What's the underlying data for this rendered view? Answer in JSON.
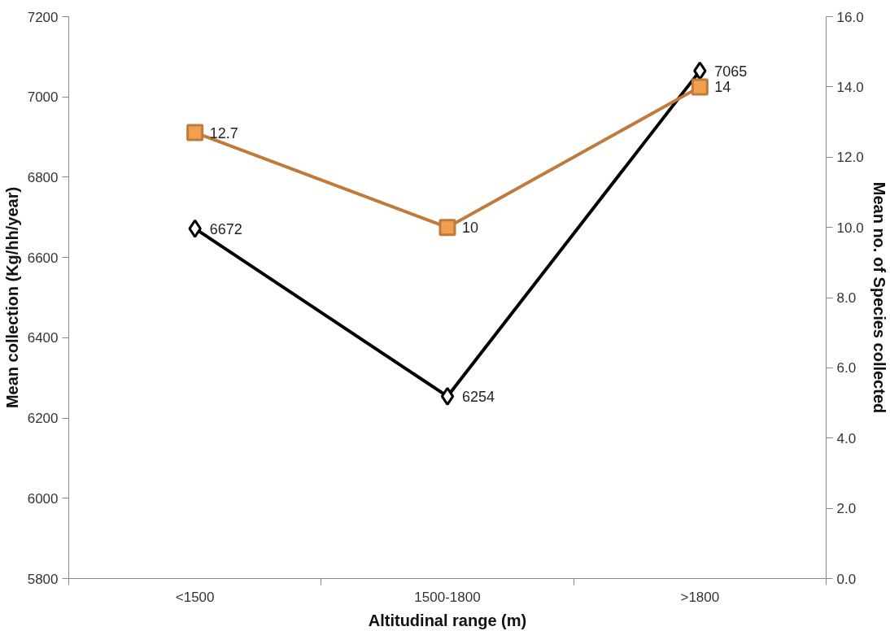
{
  "chart_data": {
    "type": "line",
    "xlabel": "Altitudinal range (m)",
    "ylabel": "Mean collection (Kg/hh/year)",
    "y2label": "Mean no. of Species collected",
    "categories": [
      "<1500",
      "1500-1800",
      ">1800"
    ],
    "series": [
      {
        "color": "#000000",
        "values": [
          6672,
          6254,
          7065
        ],
        "marker": "diamond"
      },
      {
        "color": "#c07a3c",
        "values": [
          12.7,
          10,
          14
        ],
        "marker": "square",
        "axis": "y2"
      }
    ],
    "ylim": [
      5800,
      7200
    ],
    "yticks": [
      5800,
      6000,
      6200,
      6400,
      6600,
      6800,
      7000,
      7200
    ],
    "y2lim": [
      0,
      16
    ],
    "y2ticks": [
      {
        "value": 0,
        "label": "0.0"
      },
      {
        "value": 2,
        "label": "2.0"
      },
      {
        "value": 4,
        "label": "4.0"
      },
      {
        "value": 6,
        "label": "6.0"
      },
      {
        "value": 8,
        "label": "8.0"
      },
      {
        "value": 10,
        "label": "10.0"
      },
      {
        "value": 12,
        "label": "12.0"
      },
      {
        "value": 14,
        "label": "14.0"
      },
      {
        "value": 16,
        "label": "16.0"
      }
    ],
    "data_labels": true,
    "grid": false,
    "line_style": "solid"
  }
}
